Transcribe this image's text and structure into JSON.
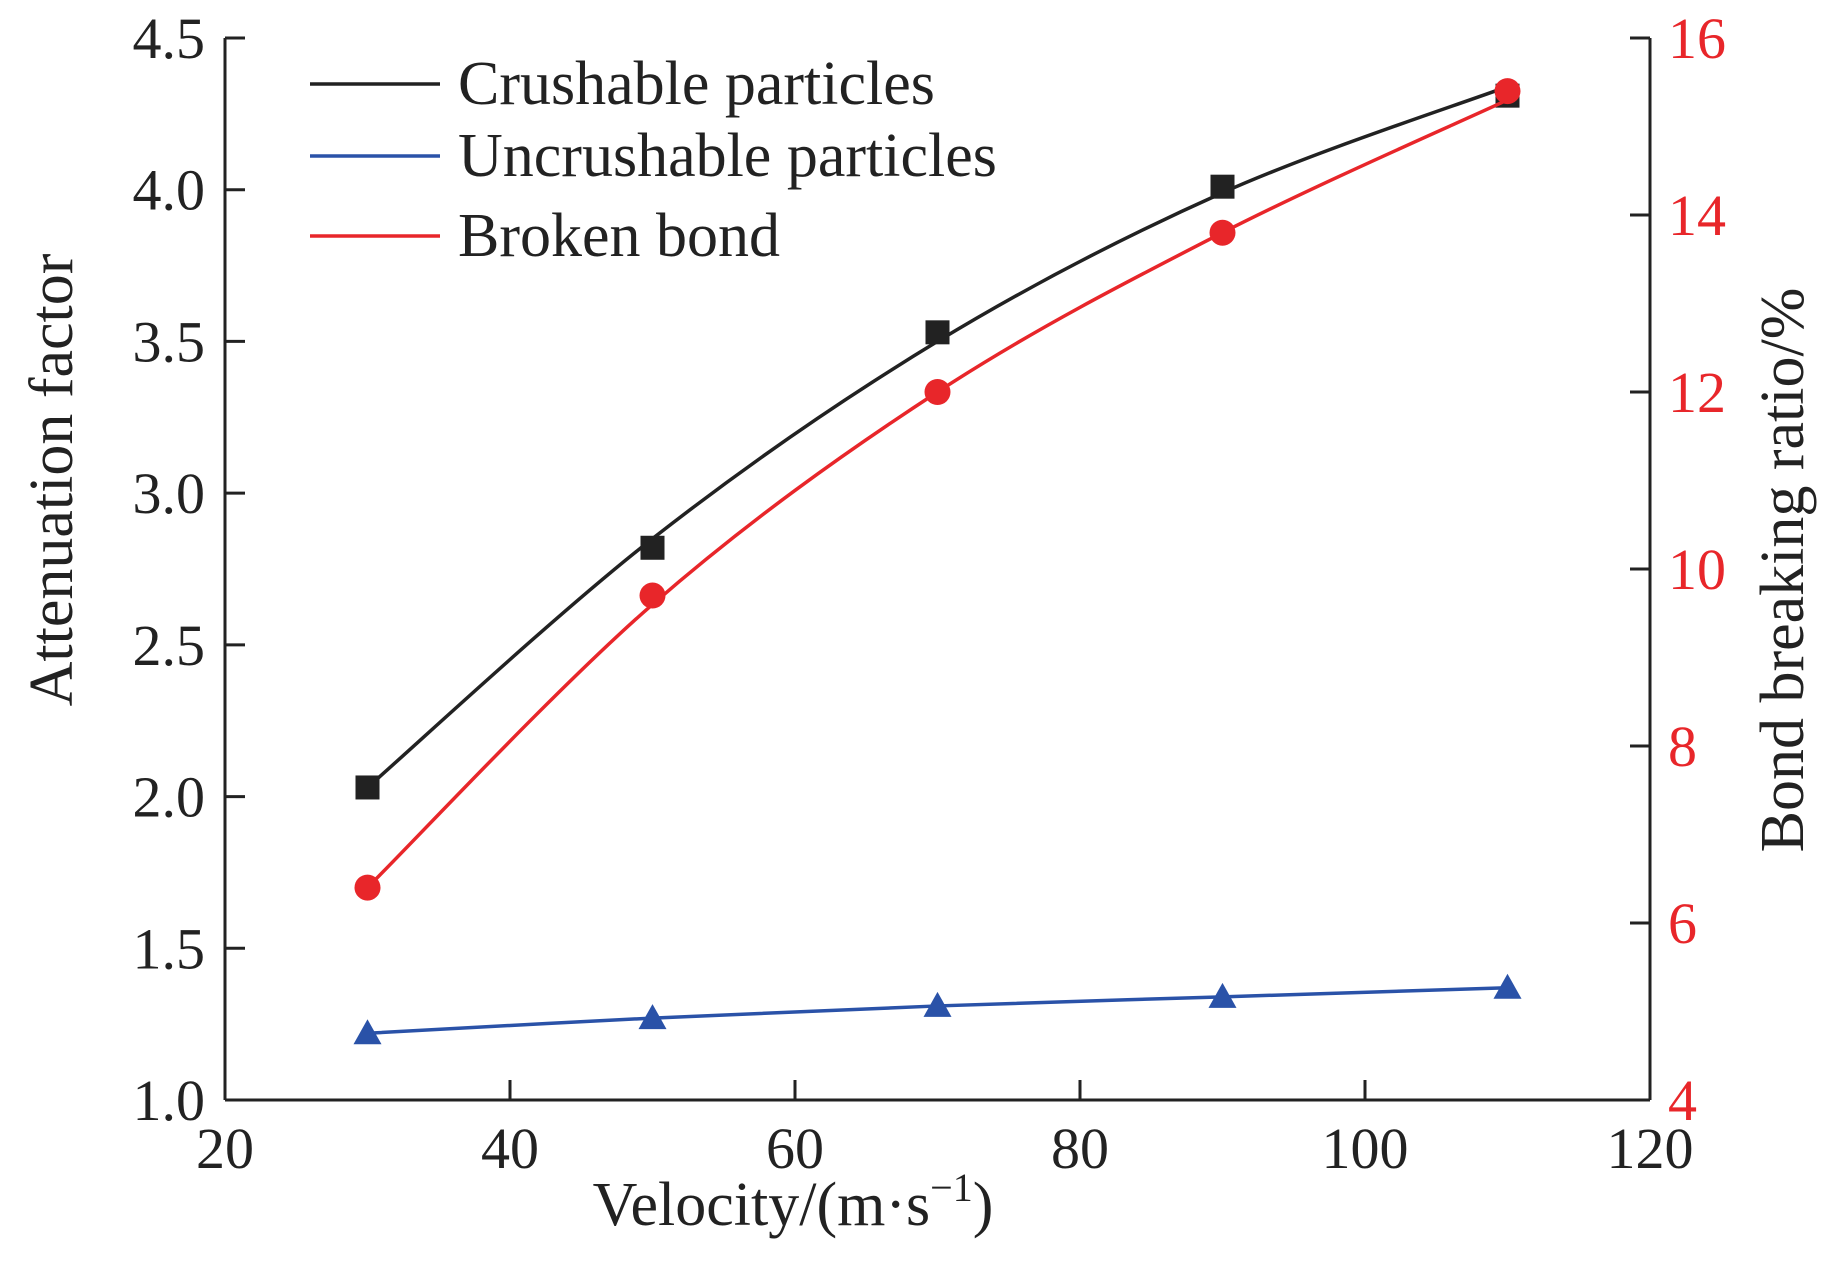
{
  "chart_data": {
    "type": "line",
    "xlabel": "Velocity/(m·s⁻¹)",
    "ylabel": "Attenuation factor",
    "y2label": "Bond breaking ratio/%",
    "xlim": [
      20,
      120
    ],
    "ylim": [
      1.0,
      4.5
    ],
    "y2lim": [
      4,
      16
    ],
    "xticks": [
      "20",
      "40",
      "60",
      "80",
      "100",
      "120"
    ],
    "yticks": [
      "1.0",
      "1.5",
      "2.0",
      "2.5",
      "3.0",
      "3.5",
      "4.0",
      "4.5"
    ],
    "y2ticks": [
      "4",
      "6",
      "8",
      "10",
      "12",
      "14",
      "16"
    ],
    "x": [
      30,
      50,
      70,
      90,
      110
    ],
    "series": [
      {
        "name": "Crushable particles",
        "axis": "left",
        "marker": "square",
        "color": "#222222",
        "values": [
          2.03,
          2.82,
          3.53,
          4.01,
          4.31
        ],
        "fit": [
          2.03,
          2.85,
          3.5,
          3.99,
          4.34
        ]
      },
      {
        "name": "Uncrushable particles",
        "axis": "left",
        "marker": "triangle",
        "color": "#2a52a8",
        "values": [
          1.22,
          1.27,
          1.31,
          1.34,
          1.37
        ],
        "fit": [
          1.22,
          1.27,
          1.31,
          1.34,
          1.37
        ]
      },
      {
        "name": "Broken bond",
        "axis": "right",
        "marker": "circle",
        "color": "#e8262a",
        "values": [
          6.4,
          9.7,
          12.0,
          13.8,
          15.4
        ],
        "fit": [
          6.4,
          9.6,
          12.0,
          13.8,
          15.3
        ]
      }
    ],
    "legend_position": "top-left",
    "grid": false
  }
}
